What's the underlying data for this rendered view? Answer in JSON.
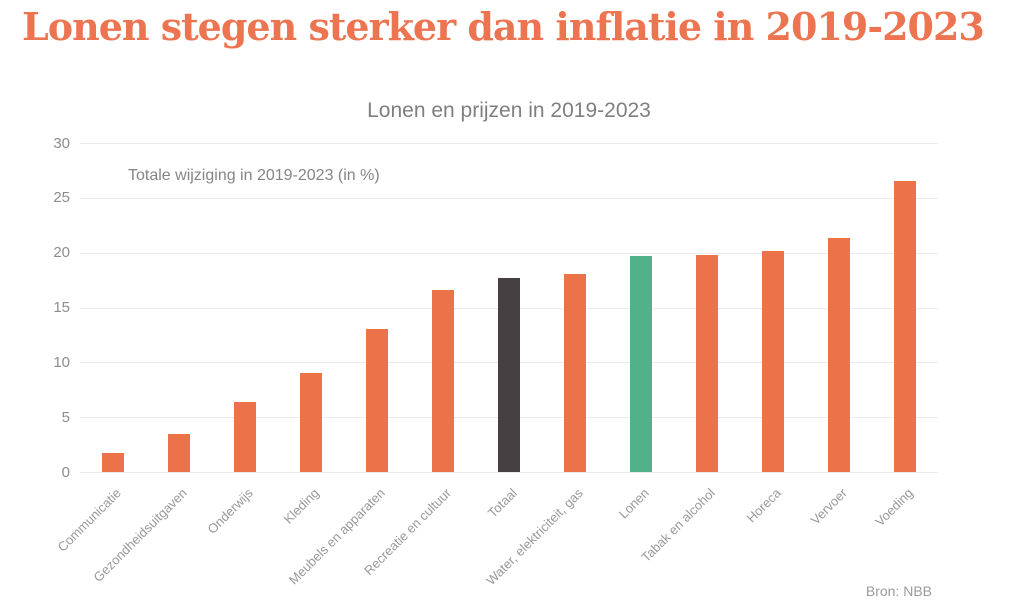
{
  "header": {
    "title": "Lonen stegen sterker dan inflatie in 2019-2023"
  },
  "chart_data": {
    "type": "bar",
    "title": "Lonen en prijzen in 2019-2023",
    "annotation": "Totale wijziging in 2019-2023 (in %)",
    "source": "Bron: NBB",
    "categories": [
      "Communicatie",
      "Gezondheidsuitgaven",
      "Onderwijs",
      "Kleding",
      "Meubels en apparaten",
      "Recreatie en cultuur",
      "Totaal",
      "Water, elektriciteit, gas",
      "Lonen",
      "Tabak en alcohol",
      "Horeca",
      "Vervoer",
      "Voeding"
    ],
    "values": [
      1.8,
      3.5,
      6.4,
      9.1,
      13.1,
      16.6,
      17.7,
      18.1,
      19.7,
      19.8,
      20.2,
      21.4,
      26.6
    ],
    "bar_color_keys": [
      "orange",
      "orange",
      "orange",
      "orange",
      "orange",
      "orange",
      "dark",
      "orange",
      "green",
      "orange",
      "orange",
      "orange",
      "orange"
    ],
    "ylim": [
      0,
      30
    ],
    "yticks": [
      0,
      5,
      10,
      15,
      20,
      25,
      30
    ],
    "grid": "horizontal",
    "legend": "none"
  },
  "colors": {
    "title": "#ed7450",
    "bar_orange": "#ec7249",
    "bar_dark": "#464043",
    "bar_green": "#52b189",
    "subtitle_text": "#7f7f7f",
    "axis_text": "#8c8c8c",
    "gridline": "#ebebeb"
  }
}
